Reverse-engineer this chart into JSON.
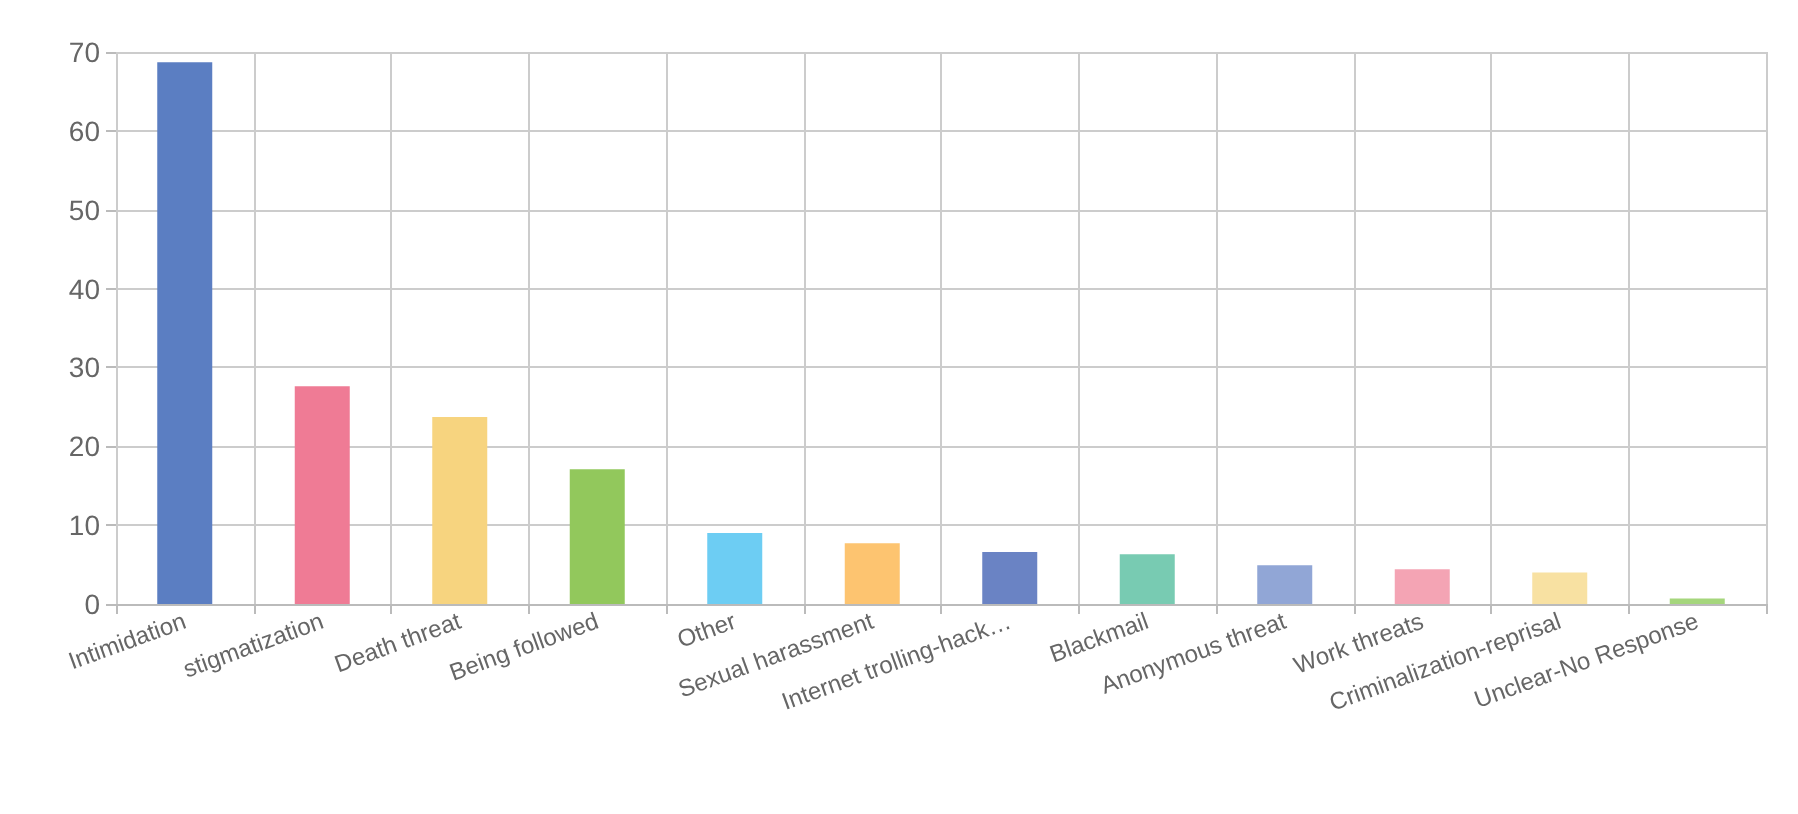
{
  "chart_data": {
    "type": "bar",
    "categories": [
      "Intimidation",
      "stigmatization",
      "Death threat",
      "Being followed",
      "Other",
      "Sexual harassment",
      "Internet trolling-hack…",
      "Blackmail",
      "Anonymous threat",
      "Work threats",
      "Criminalization-reprisal",
      "Unclear-No Response"
    ],
    "values": [
      68.7,
      27.6,
      23.7,
      17.1,
      9.0,
      7.7,
      6.6,
      6.3,
      4.9,
      4.4,
      4.0,
      0.7
    ],
    "colors": [
      "#5b7ec2",
      "#ef7b95",
      "#f7d47f",
      "#92c85c",
      "#6dcdf3",
      "#fdc470",
      "#6a83c4",
      "#78cbb2",
      "#91a6d6",
      "#f4a4b4",
      "#f8e1a2",
      "#a5d67c"
    ],
    "ylim": [
      0,
      70
    ],
    "yticks": [
      0,
      10,
      20,
      30,
      40,
      50,
      60,
      70
    ],
    "grid": true
  }
}
